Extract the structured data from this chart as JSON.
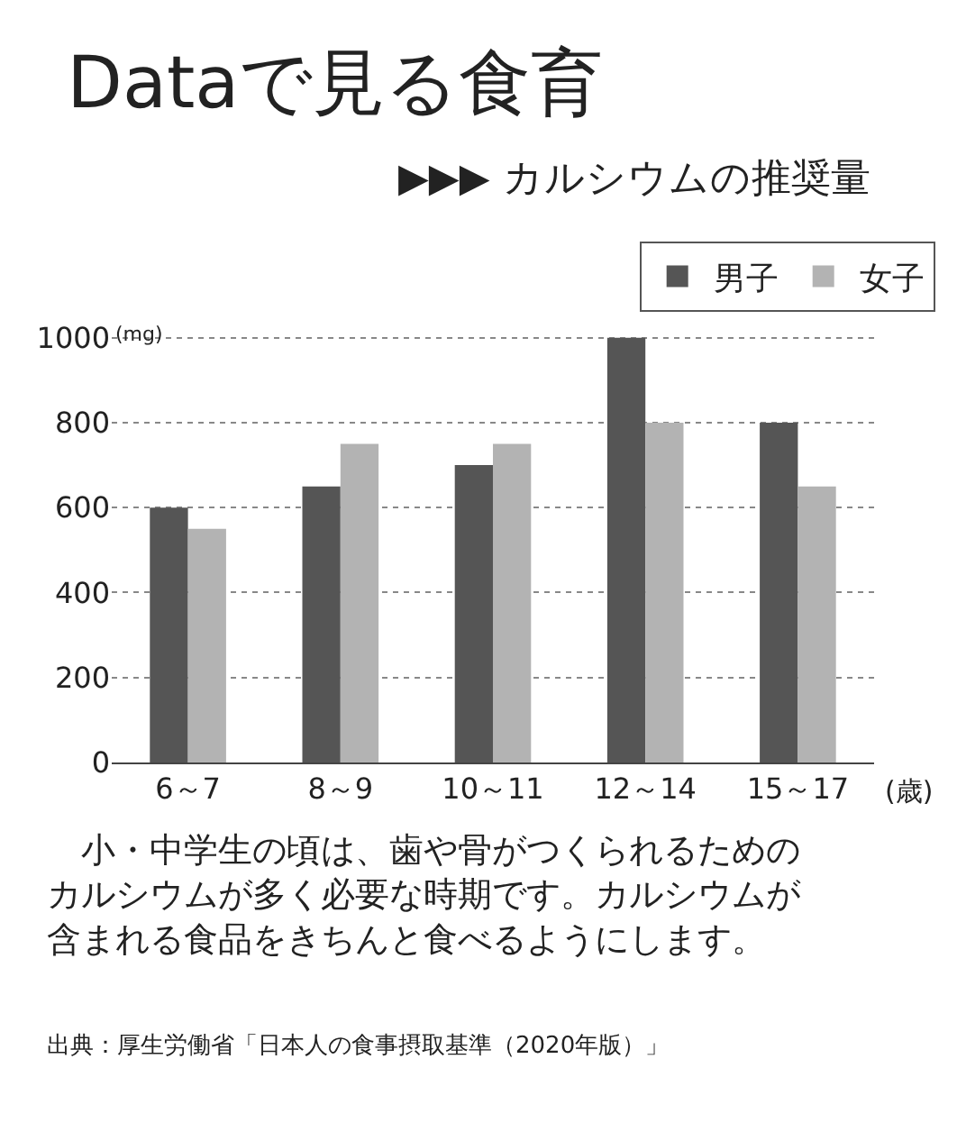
{
  "chart_data": {
    "type": "bar",
    "title": "Dataで見る食育",
    "subtitle": "▶▶▶ カルシウムの推奨量",
    "ylabel": "(mg)",
    "xlabel": "(歳)",
    "categories": [
      "6～7",
      "8～9",
      "10～11",
      "12～14",
      "15～17"
    ],
    "series": [
      {
        "name": "男子",
        "color": "#555555",
        "values": [
          600,
          650,
          700,
          1000,
          800
        ]
      },
      {
        "name": "女子",
        "color": "#b3b3b3",
        "values": [
          550,
          750,
          750,
          800,
          650
        ]
      }
    ],
    "ylim": [
      0,
      1010
    ],
    "yticks": [
      0,
      200,
      400,
      600,
      800,
      1000
    ],
    "grid": "y",
    "legend": "top right",
    "annotations": [
      "　小・中学生の頃は、歯や骨がつくられるためのカルシウムが多く必要な時期です。カルシウムが含まれる食品をきちんと食べるようにします。",
      "出典：厚生労働省「日本人の食事摂取基準（2020年版）」"
    ]
  }
}
